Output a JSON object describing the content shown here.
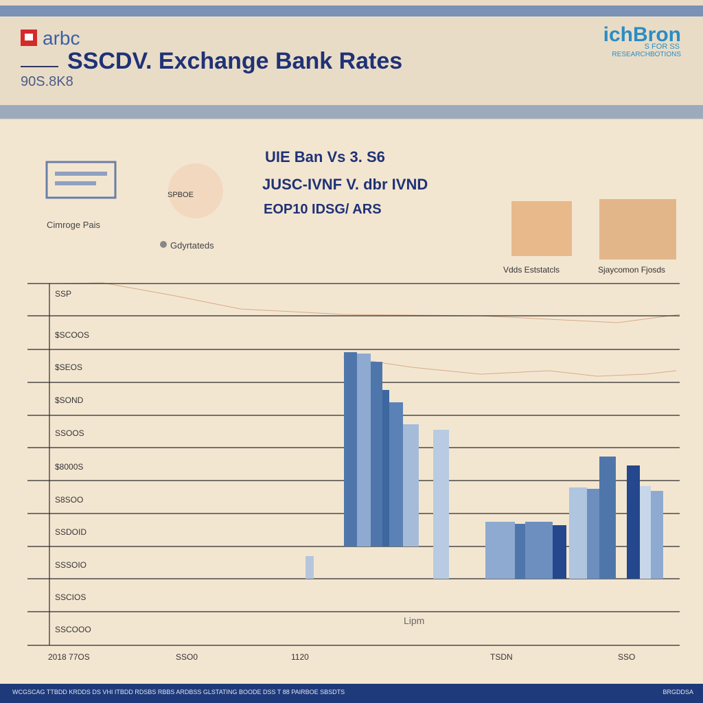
{
  "header": {
    "logo": "arbc",
    "title": "SSCDV. Exchange Bank Rates",
    "subtitle": "90S.8K8",
    "brand": {
      "name": "ichBron",
      "line1": "S FOR SS",
      "line2": "RESEARCHBOTIONS"
    }
  },
  "icons": [
    {
      "label": "Cimroge Pais"
    },
    {
      "badge": "SPBOE",
      "label": "Gdyrtateds"
    }
  ],
  "info_lines": [
    "UIE Ban Vs 3. S6",
    "JUSC-IVNF V. dbr IVND",
    "EOP10 IDSG/ ARS"
  ],
  "products": [
    "Vdds Eststatcls",
    "Sjaycomon Fjosds"
  ],
  "axis": {
    "y_labels": [
      "SSP",
      "$SCOOS",
      "$SEOS",
      "$SOND",
      "SSOOS",
      "$8000S",
      "S8SOO",
      "SSDOID",
      "SSSOIO",
      "SSCIOS",
      "SSCOOO"
    ],
    "x_labels": [
      "2018 77OS",
      "SSO0",
      "1120",
      "TSDN",
      "SSO"
    ],
    "caption": "Lipm"
  },
  "footer": {
    "left": "WCGSCAG TTBDD KRDDS DS VHI ITBDD RDSBS RBBS ARDBSS GLSTATING BOODE DSS T 88 PAIRBOE SBSDTS",
    "right": "BRGDDSA"
  }
}
